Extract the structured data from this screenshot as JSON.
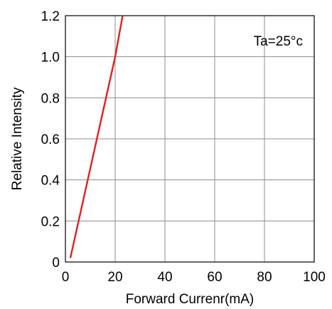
{
  "chart_data": {
    "type": "line",
    "xlabel": "Forward Currenr(mA)",
    "ylabel": "Relative Intensity",
    "annotation": "Ta=25°c",
    "xlim": [
      0,
      100
    ],
    "ylim": [
      0,
      1.2
    ],
    "x_ticks": [
      "0",
      "20",
      "40",
      "60",
      "80",
      "100"
    ],
    "y_ticks": [
      "0",
      "0.2",
      "0.4",
      "0.6",
      "0.8",
      "1.0",
      "1.2"
    ],
    "grid": true,
    "series": [
      {
        "x": [
          2,
          20,
          23
        ],
        "y": [
          0.02,
          1.0,
          1.2
        ],
        "color": "#e02020"
      }
    ]
  }
}
